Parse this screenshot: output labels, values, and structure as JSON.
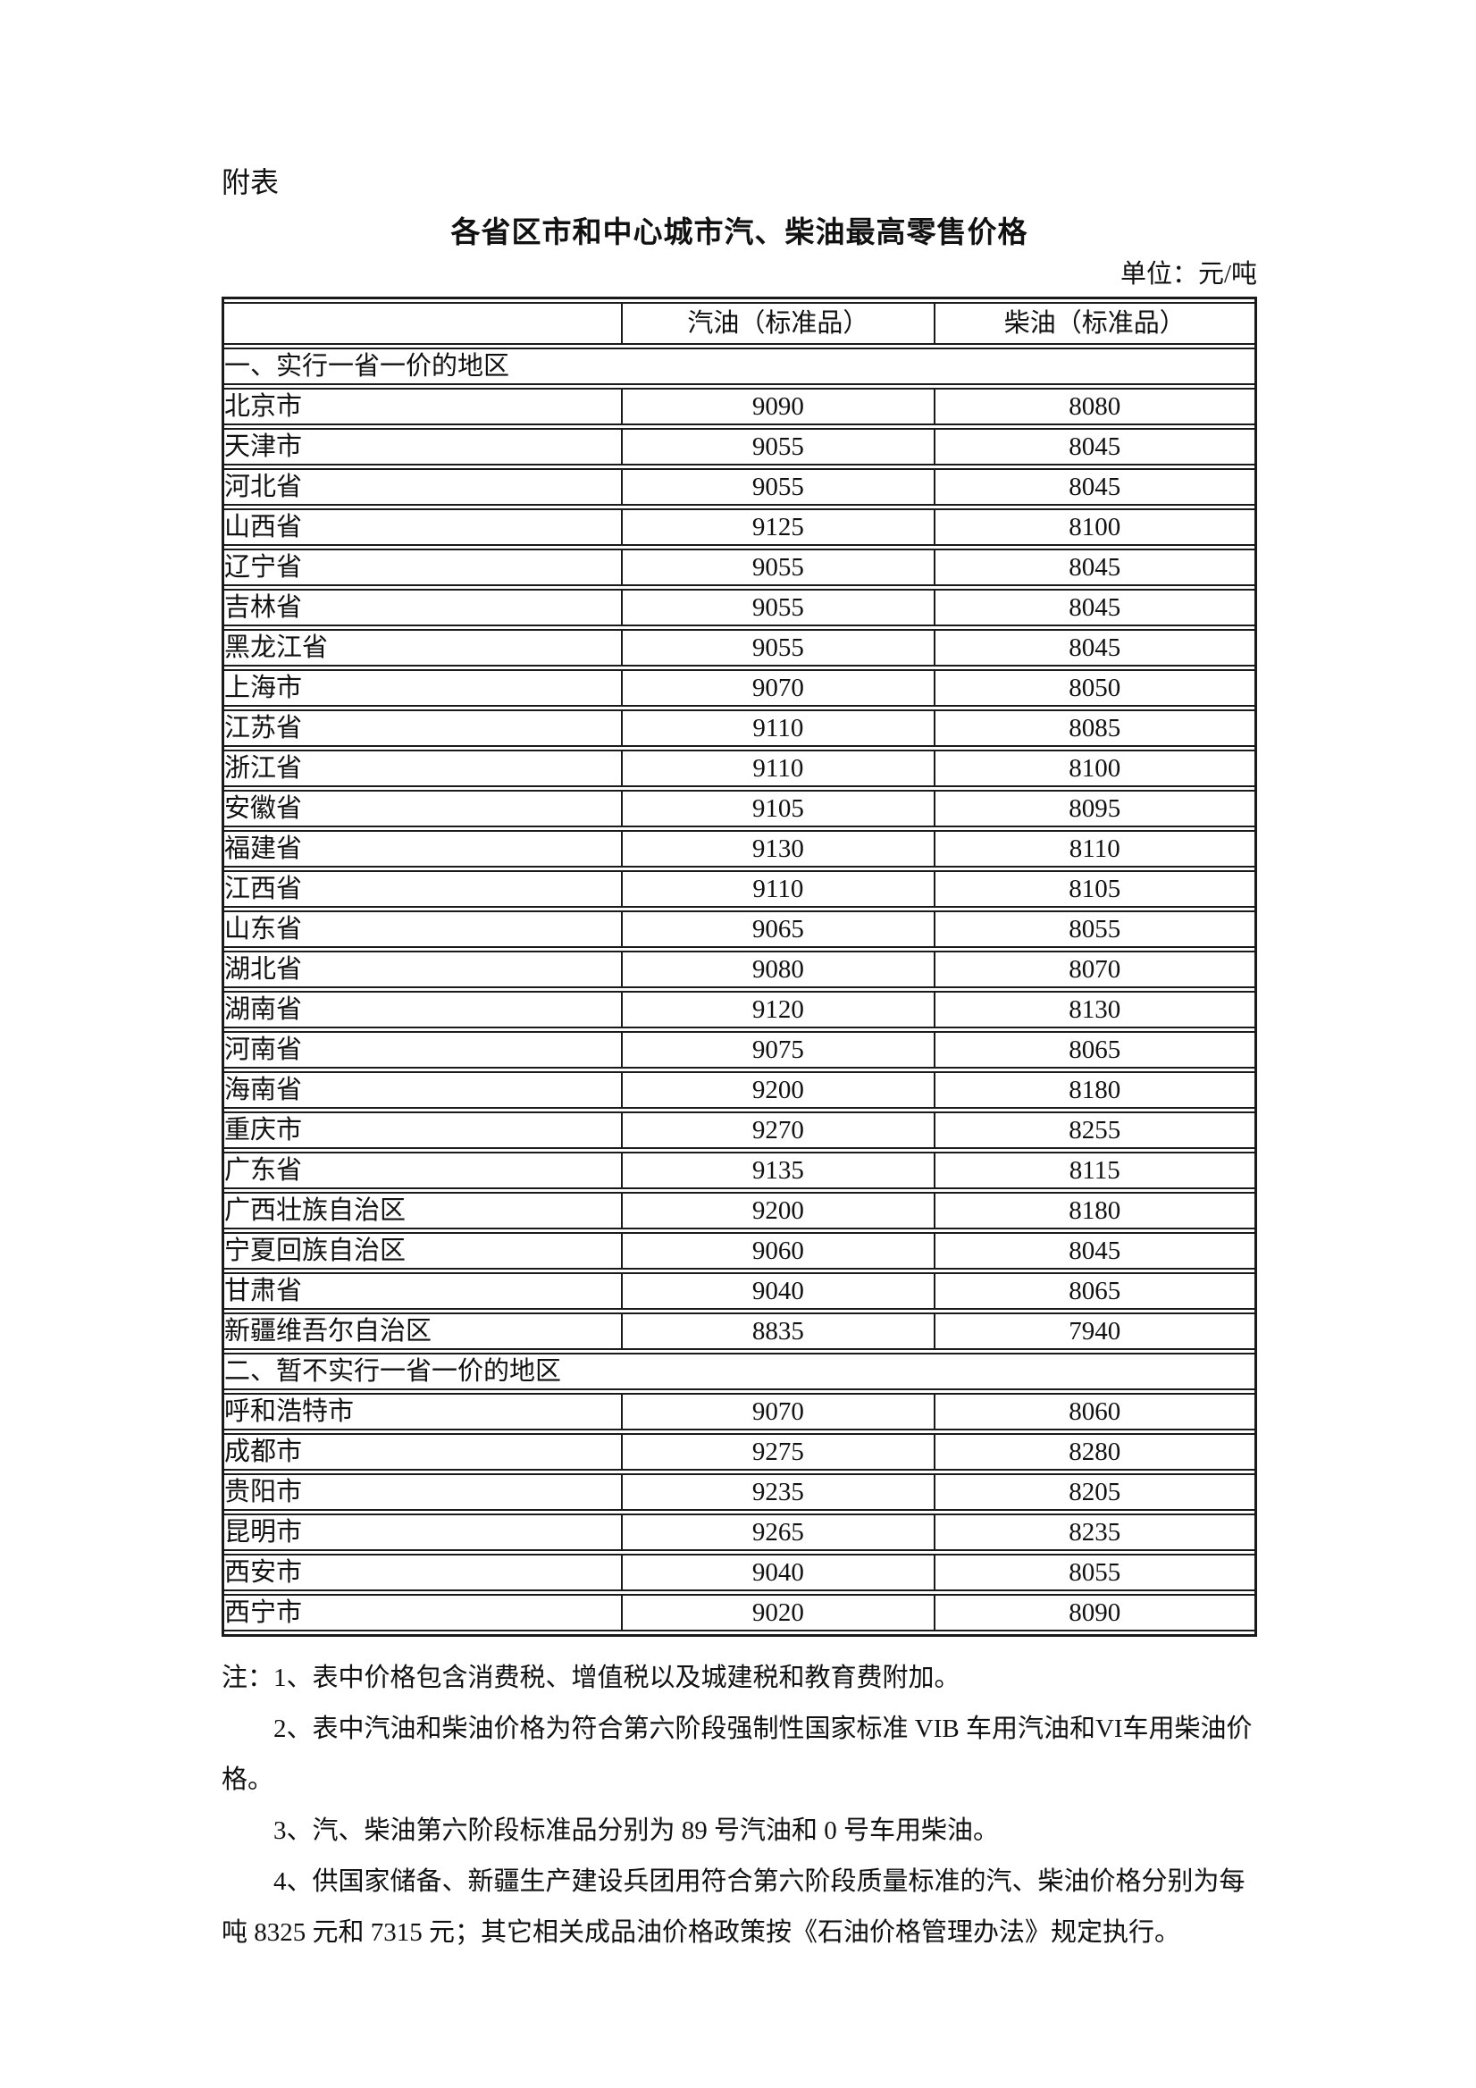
{
  "page": {
    "attachment_label": "附表",
    "title": "各省区市和中心城市汽、柴油最高零售价格",
    "unit_label": "单位：元/吨"
  },
  "table": {
    "columns": [
      "",
      "汽油（标准品）",
      "柴油（标准品）"
    ],
    "sections": [
      {
        "header": "一、实行一省一价的地区",
        "rows": [
          [
            "北京市",
            "9090",
            "8080"
          ],
          [
            "天津市",
            "9055",
            "8045"
          ],
          [
            "河北省",
            "9055",
            "8045"
          ],
          [
            "山西省",
            "9125",
            "8100"
          ],
          [
            "辽宁省",
            "9055",
            "8045"
          ],
          [
            "吉林省",
            "9055",
            "8045"
          ],
          [
            "黑龙江省",
            "9055",
            "8045"
          ],
          [
            "上海市",
            "9070",
            "8050"
          ],
          [
            "江苏省",
            "9110",
            "8085"
          ],
          [
            "浙江省",
            "9110",
            "8100"
          ],
          [
            "安徽省",
            "9105",
            "8095"
          ],
          [
            "福建省",
            "9130",
            "8110"
          ],
          [
            "江西省",
            "9110",
            "8105"
          ],
          [
            "山东省",
            "9065",
            "8055"
          ],
          [
            "湖北省",
            "9080",
            "8070"
          ],
          [
            "湖南省",
            "9120",
            "8130"
          ],
          [
            "河南省",
            "9075",
            "8065"
          ],
          [
            "海南省",
            "9200",
            "8180"
          ],
          [
            "重庆市",
            "9270",
            "8255"
          ],
          [
            "广东省",
            "9135",
            "8115"
          ],
          [
            "广西壮族自治区",
            "9200",
            "8180"
          ],
          [
            "宁夏回族自治区",
            "9060",
            "8045"
          ],
          [
            "甘肃省",
            "9040",
            "8065"
          ],
          [
            "新疆维吾尔自治区",
            "8835",
            "7940"
          ]
        ]
      },
      {
        "header": "二、暂不实行一省一价的地区",
        "rows": [
          [
            "呼和浩特市",
            "9070",
            "8060"
          ],
          [
            "成都市",
            "9275",
            "8280"
          ],
          [
            "贵阳市",
            "9235",
            "8205"
          ],
          [
            "昆明市",
            "9265",
            "8235"
          ],
          [
            "西安市",
            "9040",
            "8055"
          ],
          [
            "西宁市",
            "9020",
            "8090"
          ]
        ]
      }
    ]
  },
  "notes": [
    "注：1、表中价格包含消费税、增值税以及城建税和教育费附加。",
    "2、表中汽油和柴油价格为符合第六阶段强制性国家标准 VIB 车用汽油和VI车用柴油价格。",
    "3、汽、柴油第六阶段标准品分别为 89 号汽油和 0 号车用柴油。",
    "4、供国家储备、新疆生产建设兵团用符合第六阶段质量标准的汽、柴油价格分别为每吨 8325 元和 7315 元；其它相关成品油价格政策按《石油价格管理办法》规定执行。"
  ]
}
